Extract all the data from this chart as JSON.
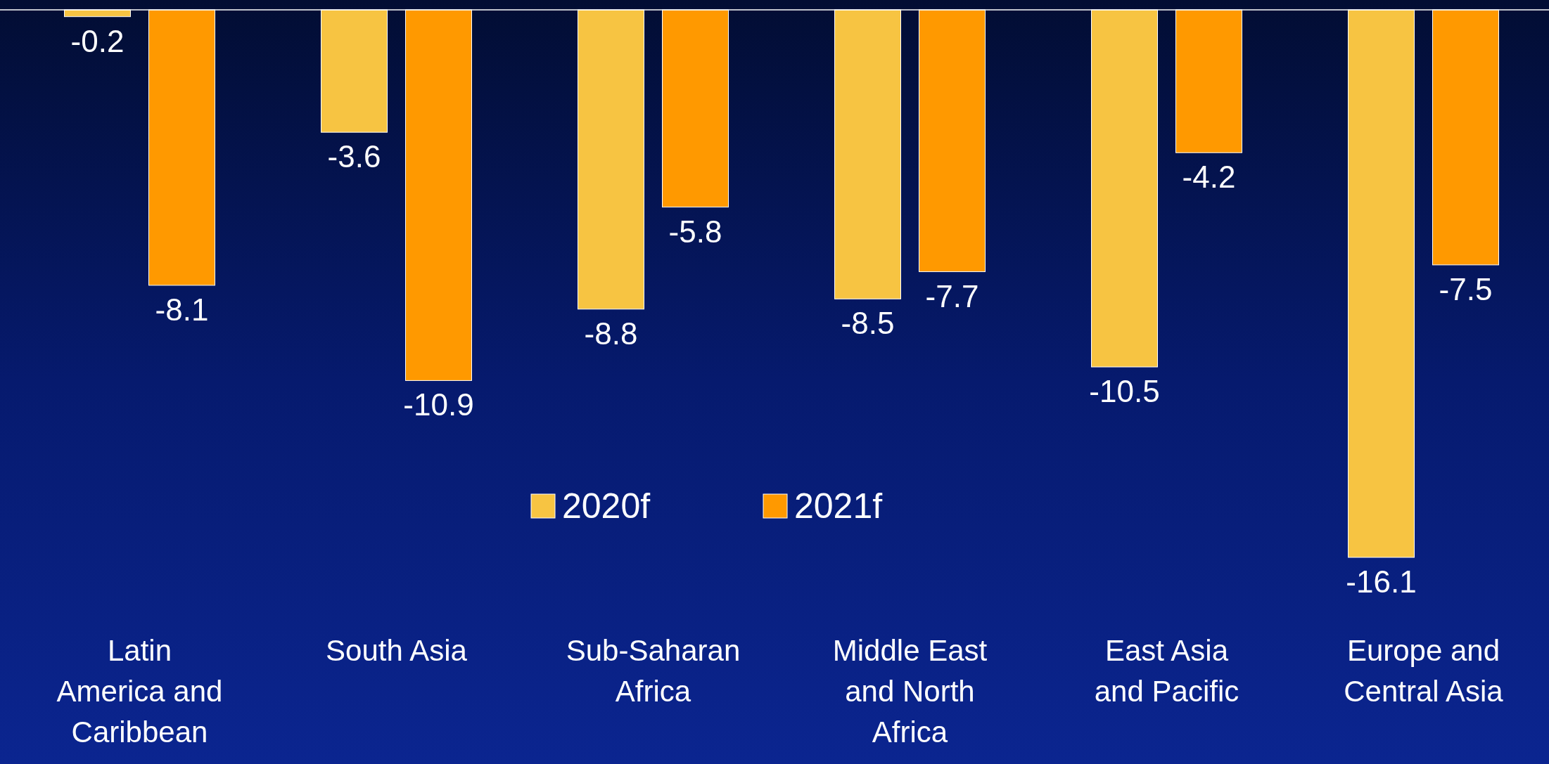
{
  "chart_data": {
    "type": "bar",
    "categories": [
      "Latin America and Caribbean",
      "South Asia",
      "Sub-Saharan Africa",
      "Middle East and North Africa",
      "East Asia and Pacific",
      "Europe and Central Asia"
    ],
    "series": [
      {
        "name": "2020f",
        "color": "#f7c442",
        "values": [
          -0.2,
          -3.6,
          -8.8,
          -8.5,
          -10.5,
          -16.1
        ]
      },
      {
        "name": "2021f",
        "color": "#ff9900",
        "values": [
          -8.1,
          -10.9,
          -5.8,
          -7.7,
          -4.2,
          -7.5
        ]
      }
    ],
    "data_labels": true,
    "legend": "bottom",
    "grid": false
  }
}
